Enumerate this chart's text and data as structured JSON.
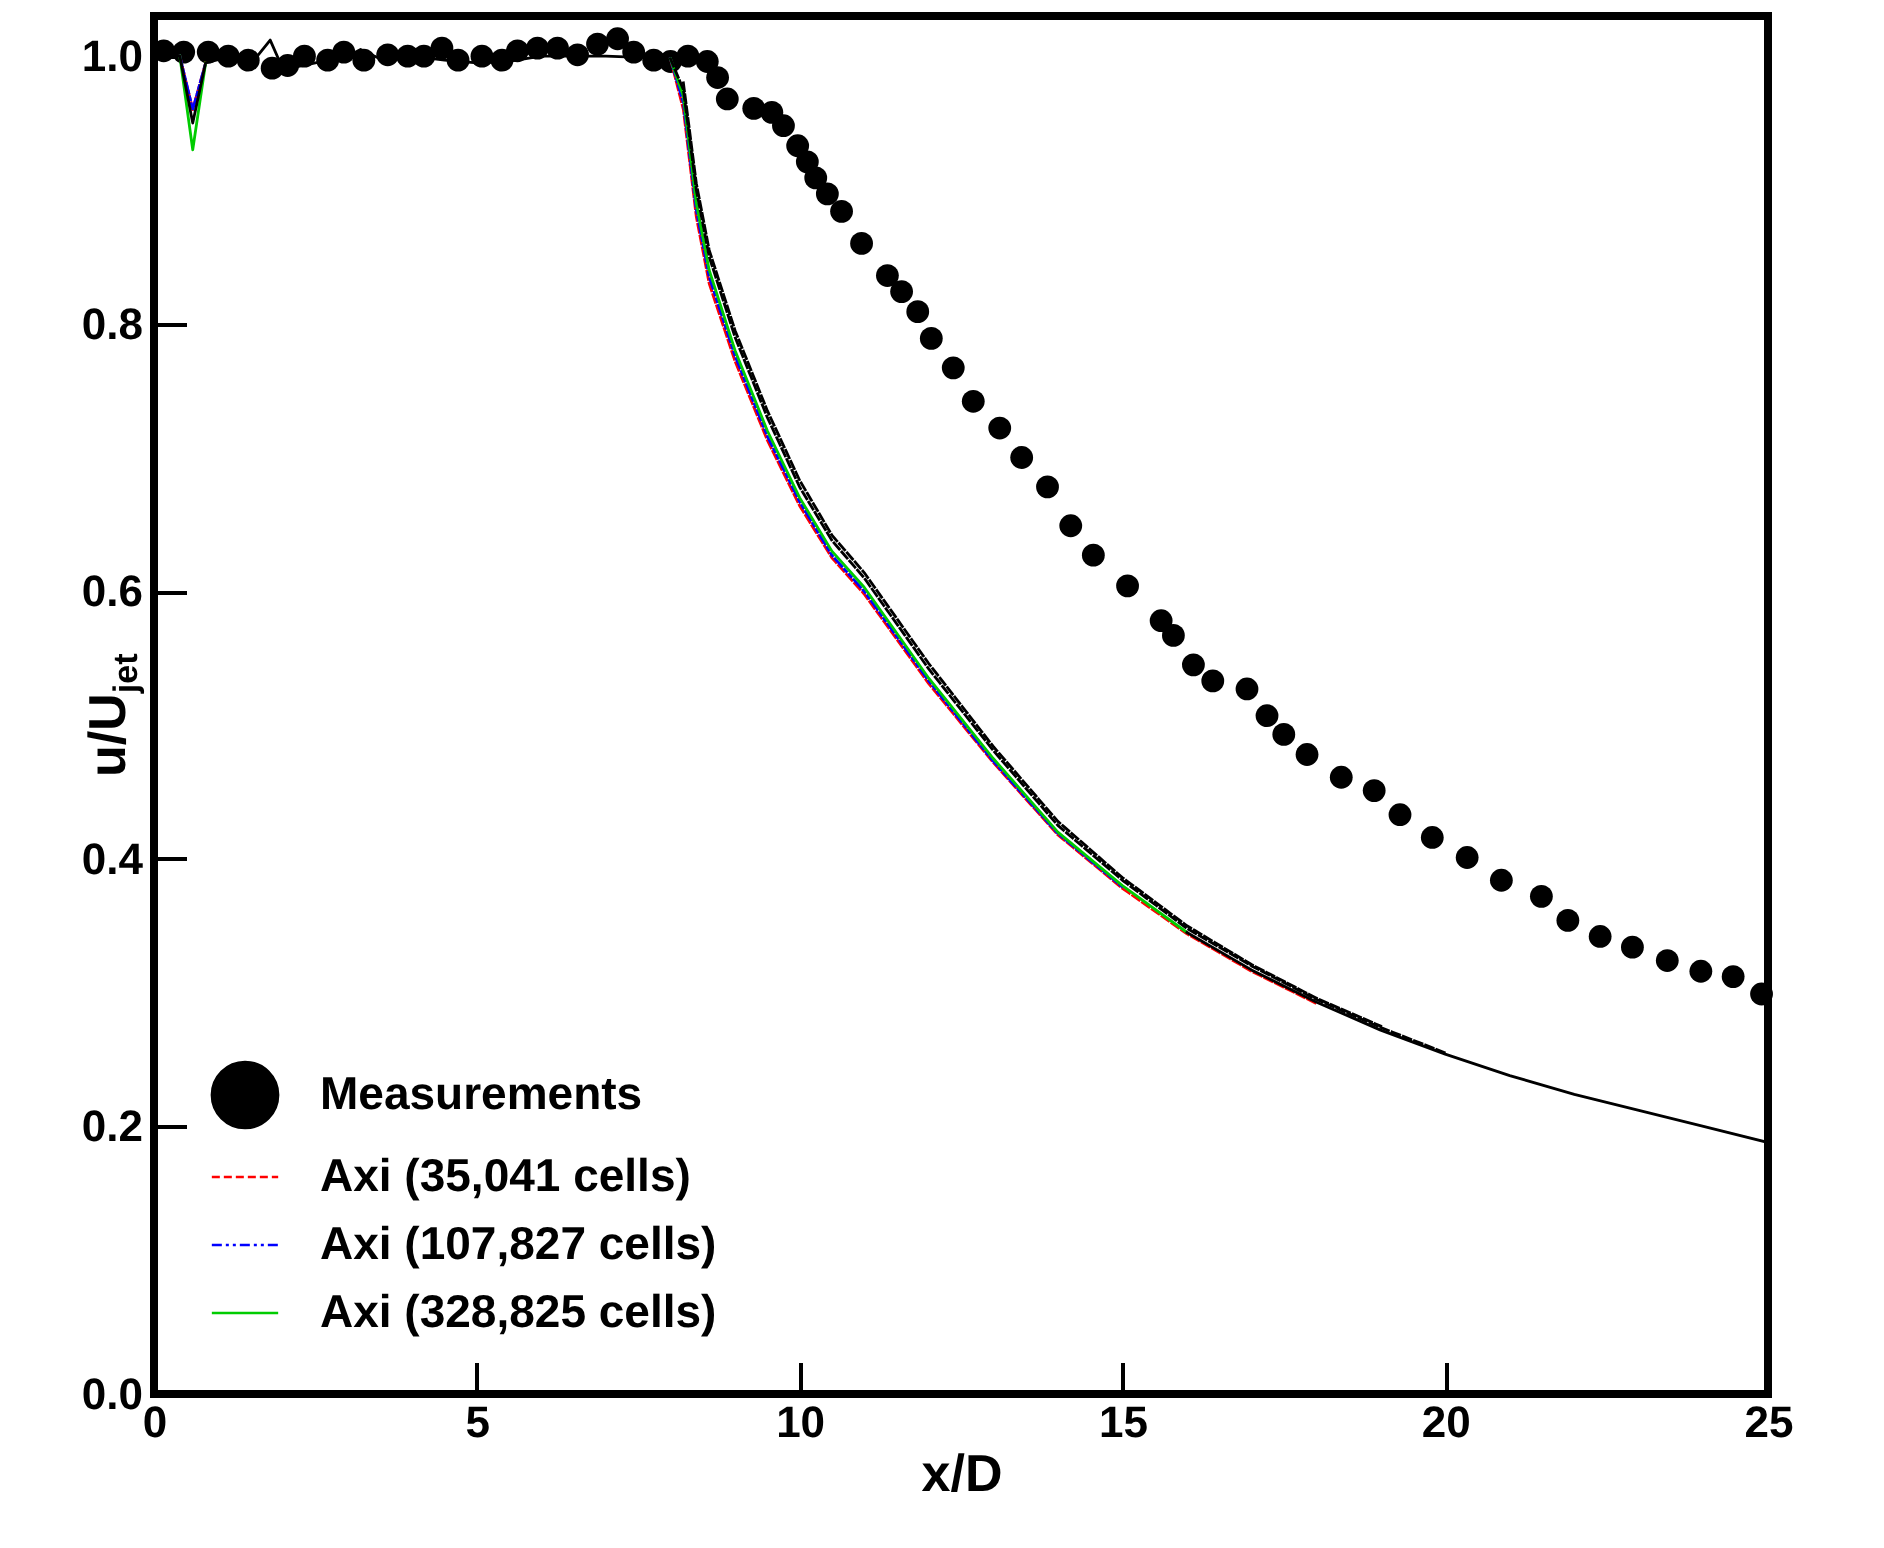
{
  "chart_data": {
    "type": "line",
    "xlabel": "x/D",
    "ylabel": "u/U$_{jet}$",
    "xlim": [
      0,
      25
    ],
    "xticks": [
      0,
      5,
      10,
      15,
      20,
      25
    ],
    "ylim": [
      0,
      1.03
    ],
    "yticks": [
      {
        "value": 0,
        "label": "0.0"
      },
      {
        "value": 0.2,
        "label": "0.2"
      },
      {
        "value": 0.4,
        "label": "0.4"
      },
      {
        "value": 0.6,
        "label": "0.6"
      },
      {
        "value": 0.8,
        "label": "0.8"
      },
      {
        "value": 1,
        "label": "1.0"
      }
    ],
    "grid": false,
    "legend": "bottom left",
    "x": [
      0,
      0.4,
      0.6,
      0.8,
      1.2,
      1.6,
      1.8,
      2.0,
      2.5,
      3.0,
      3.2,
      3.5,
      4,
      4.5,
      5,
      5.5,
      6,
      6.5,
      7,
      7.5,
      8.0,
      8.2,
      8.4,
      8.6,
      9,
      9.5,
      10,
      10.5,
      11,
      12,
      13,
      14,
      15,
      16,
      17,
      18,
      19,
      20,
      21,
      22,
      23,
      24,
      25
    ],
    "series": [
      {
        "name": "Measurements",
        "type": "scatter",
        "marker": "circle",
        "color": "#000000",
        "x": [
          0.15,
          0.46,
          0.84,
          1.15,
          1.46,
          1.83,
          2.07,
          2.33,
          2.69,
          2.94,
          3.25,
          3.62,
          3.93,
          4.18,
          4.46,
          4.71,
          5.08,
          5.39,
          5.63,
          5.94,
          6.25,
          6.56,
          6.87,
          7.18,
          7.43,
          7.74,
          8.0,
          8.27,
          8.57,
          8.73,
          8.88,
          9.29,
          9.57,
          9.75,
          9.97,
          10.12,
          10.25,
          10.43,
          10.65,
          10.96,
          11.36,
          11.58,
          11.83,
          12.04,
          12.38,
          12.69,
          13.1,
          13.44,
          13.84,
          14.2,
          14.55,
          15.08,
          15.6,
          15.79,
          16.1,
          16.4,
          16.93,
          17.24,
          17.5,
          17.86,
          18.39,
          18.9,
          19.3,
          19.8,
          20.34,
          20.87,
          21.49,
          21.9,
          22.4,
          22.9,
          23.44,
          23.96,
          24.46,
          24.9
        ],
        "values": [
          1.004,
          1.003,
          1.003,
          1.0,
          0.997,
          0.991,
          0.993,
          1.0,
          0.997,
          1.003,
          0.997,
          1.001,
          1.0,
          1.0,
          1.006,
          0.997,
          1.0,
          0.997,
          1.004,
          1.006,
          1.006,
          1.001,
          1.009,
          1.013,
          1.003,
          0.997,
          0.996,
          1.0,
          0.996,
          0.984,
          0.968,
          0.961,
          0.958,
          0.948,
          0.933,
          0.921,
          0.909,
          0.897,
          0.884,
          0.86,
          0.836,
          0.824,
          0.809,
          0.789,
          0.767,
          0.742,
          0.722,
          0.7,
          0.678,
          0.649,
          0.627,
          0.604,
          0.578,
          0.567,
          0.545,
          0.533,
          0.527,
          0.507,
          0.493,
          0.478,
          0.461,
          0.451,
          0.433,
          0.416,
          0.401,
          0.384,
          0.372,
          0.354,
          0.342,
          0.334,
          0.324,
          0.316,
          0.312,
          0.299
        ]
      },
      {
        "name": "Axi (35,041 cells)",
        "type": "line",
        "line_style": "dashed",
        "color": "#ff0000",
        "values": [
          null,
          1.0,
          0.96,
          0.995,
          null,
          null,
          null,
          null,
          null,
          null,
          null,
          null,
          null,
          null,
          null,
          null,
          null,
          null,
          null,
          null,
          0.998,
          0.96,
          0.88,
          0.83,
          0.772,
          0.713,
          0.664,
          0.625,
          0.598,
          0.531,
          0.472,
          0.418,
          0.378,
          0.344,
          0.316,
          0.292,
          null,
          null,
          null,
          null,
          null,
          null,
          null
        ]
      },
      {
        "name": "Axi (107,827 cells)",
        "type": "line",
        "line_style": "dashdot",
        "color": "#0000ff",
        "values": [
          null,
          1.0,
          0.96,
          0.995,
          null,
          null,
          null,
          null,
          null,
          null,
          null,
          null,
          null,
          null,
          null,
          null,
          null,
          null,
          null,
          null,
          0.998,
          0.965,
          0.885,
          0.835,
          0.776,
          0.716,
          0.667,
          0.627,
          0.6,
          0.533,
          0.473,
          0.419,
          0.379,
          null,
          null,
          null,
          null,
          null,
          null,
          null,
          null,
          null,
          null
        ]
      },
      {
        "name": "Axi (328,825 cells)",
        "type": "line",
        "line_style": "solid",
        "color": "#00cc00",
        "values": [
          null,
          1.0,
          0.93,
          0.995,
          null,
          null,
          null,
          null,
          null,
          null,
          null,
          null,
          null,
          null,
          null,
          null,
          null,
          null,
          null,
          null,
          0.998,
          0.97,
          0.89,
          0.84,
          0.78,
          0.72,
          0.67,
          0.63,
          0.603,
          0.535,
          0.475,
          0.42,
          0.38,
          0.345,
          null,
          null,
          null,
          null,
          null,
          null,
          null,
          null,
          null
        ]
      },
      {
        "type": "line",
        "line_style": "solid",
        "color": "#000000",
        "values": [
          1.0,
          1.0,
          0.95,
          0.995,
          1.0,
          1.0,
          1.012,
          0.99,
          0.995,
          1.0,
          1.005,
          0.998,
          1.0,
          0.997,
          0.995,
          0.996,
          1.0,
          1.0,
          1.0,
          0.999,
          null,
          null,
          null,
          null,
          null,
          null,
          null,
          null,
          null,
          null,
          null,
          null,
          null,
          0.345,
          0.317,
          0.293,
          0.272,
          0.254,
          0.238,
          0.224,
          0.212,
          0.2,
          0.188
        ]
      },
      {
        "type": "line",
        "line_style": "dashed",
        "color": "#000000",
        "values": [
          null,
          null,
          null,
          null,
          null,
          null,
          null,
          null,
          null,
          null,
          null,
          null,
          null,
          null,
          null,
          null,
          null,
          null,
          null,
          null,
          0.998,
          0.975,
          0.9,
          0.85,
          0.79,
          0.73,
          0.678,
          0.638,
          0.61,
          0.542,
          0.481,
          0.425,
          0.384,
          0.348,
          0.32,
          0.295,
          0.274,
          0.255,
          null,
          null,
          null,
          null,
          null
        ]
      },
      {
        "type": "line",
        "line_style": "dashed",
        "color": "#000000",
        "values": [
          null,
          null,
          null,
          null,
          null,
          null,
          null,
          null,
          null,
          null,
          null,
          null,
          null,
          null,
          null,
          null,
          null,
          null,
          null,
          null,
          null,
          0.98,
          0.905,
          0.855,
          0.795,
          0.735,
          0.683,
          0.642,
          0.614,
          0.546,
          0.484,
          0.428,
          0.386,
          0.35,
          0.321,
          0.296,
          0.275,
          null,
          null,
          null,
          null,
          null,
          null
        ]
      }
    ]
  }
}
